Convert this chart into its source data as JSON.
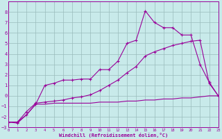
{
  "xlabel": "Windchill (Refroidissement éolien,°C)",
  "background_color": "#c8eaea",
  "grid_color": "#99bbbb",
  "line_color": "#990099",
  "x_values": [
    0,
    1,
    2,
    3,
    4,
    5,
    6,
    7,
    8,
    9,
    10,
    11,
    12,
    13,
    14,
    15,
    16,
    17,
    18,
    19,
    20,
    21,
    22,
    23
  ],
  "series1": [
    -2.5,
    -2.6,
    -1.8,
    -0.8,
    1.0,
    1.2,
    1.5,
    1.5,
    1.6,
    1.6,
    2.5,
    2.5,
    3.3,
    5.0,
    5.3,
    8.1,
    7.0,
    6.5,
    6.5,
    5.8,
    5.8,
    3.0,
    1.3,
    0.0
  ],
  "series2": [
    -2.5,
    -2.5,
    -1.8,
    -0.8,
    -0.8,
    -0.7,
    -0.7,
    -0.7,
    -0.7,
    -0.7,
    -0.6,
    -0.6,
    -0.6,
    -0.5,
    -0.5,
    -0.4,
    -0.4,
    -0.3,
    -0.3,
    -0.2,
    -0.2,
    -0.1,
    0.0,
    0.0
  ],
  "series3": [
    -2.5,
    -2.5,
    -1.5,
    -0.7,
    -0.6,
    -0.5,
    -0.4,
    -0.2,
    -0.1,
    0.1,
    0.5,
    1.0,
    1.5,
    2.2,
    2.8,
    3.8,
    4.2,
    4.5,
    4.8,
    5.0,
    5.2,
    5.3,
    1.2,
    0.0
  ],
  "ylim": [
    -3,
    9
  ],
  "xlim": [
    0,
    23
  ],
  "yticks": [
    -3,
    -2,
    -1,
    0,
    1,
    2,
    3,
    4,
    5,
    6,
    7,
    8
  ],
  "xticks": [
    0,
    1,
    2,
    3,
    4,
    5,
    6,
    7,
    8,
    9,
    10,
    11,
    12,
    13,
    14,
    15,
    16,
    17,
    18,
    19,
    20,
    21,
    22,
    23
  ]
}
